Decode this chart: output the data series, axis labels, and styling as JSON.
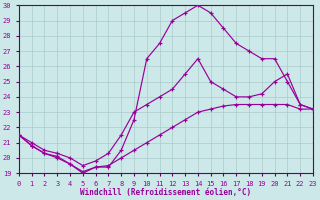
{
  "xlabel": "Windchill (Refroidissement éolien,°C)",
  "bg_color": "#cce8e8",
  "line_color": "#990099",
  "grid_color": "#aacccc",
  "axis_color": "#660066",
  "xlim": [
    0,
    23
  ],
  "ylim": [
    19,
    30
  ],
  "xticks": [
    0,
    1,
    2,
    3,
    4,
    5,
    6,
    7,
    8,
    9,
    10,
    11,
    12,
    13,
    14,
    15,
    16,
    17,
    18,
    19,
    20,
    21,
    22,
    23
  ],
  "yticks": [
    19,
    20,
    21,
    22,
    23,
    24,
    25,
    26,
    27,
    28,
    29,
    30
  ],
  "series": [
    {
      "x": [
        0,
        1,
        2,
        3,
        4,
        5,
        6,
        7,
        8,
        9,
        10,
        11,
        12,
        13,
        14,
        15,
        16,
        17,
        18,
        19,
        20,
        21,
        22,
        23
      ],
      "y": [
        21.5,
        20.8,
        20.3,
        20.1,
        19.6,
        19.1,
        19.4,
        19.5,
        20.0,
        20.5,
        21.0,
        21.5,
        22.0,
        22.5,
        23.0,
        23.2,
        23.4,
        23.5,
        23.5,
        23.5,
        23.5,
        23.5,
        23.2,
        23.2
      ]
    },
    {
      "x": [
        0,
        1,
        2,
        3,
        4,
        5,
        6,
        7,
        8,
        9,
        10,
        11,
        12,
        13,
        14,
        15,
        16,
        17,
        18,
        19,
        20,
        21,
        22,
        23
      ],
      "y": [
        21.5,
        20.8,
        20.3,
        20.0,
        19.6,
        19.0,
        19.4,
        19.4,
        20.5,
        22.5,
        26.5,
        27.5,
        29.0,
        29.5,
        30.0,
        29.5,
        28.5,
        27.5,
        27.0,
        26.5,
        26.5,
        25.0,
        23.5,
        23.2
      ]
    },
    {
      "x": [
        0,
        1,
        2,
        3,
        4,
        5,
        6,
        7,
        8,
        9,
        10,
        11,
        12,
        13,
        14,
        15,
        16,
        17,
        18,
        19,
        20,
        21,
        22,
        23
      ],
      "y": [
        21.5,
        21.0,
        20.5,
        20.3,
        20.0,
        19.5,
        19.8,
        20.3,
        21.5,
        23.0,
        23.5,
        24.0,
        24.5,
        25.5,
        26.5,
        25.0,
        24.5,
        24.0,
        24.0,
        24.2,
        25.0,
        25.5,
        23.5,
        23.2
      ]
    }
  ]
}
